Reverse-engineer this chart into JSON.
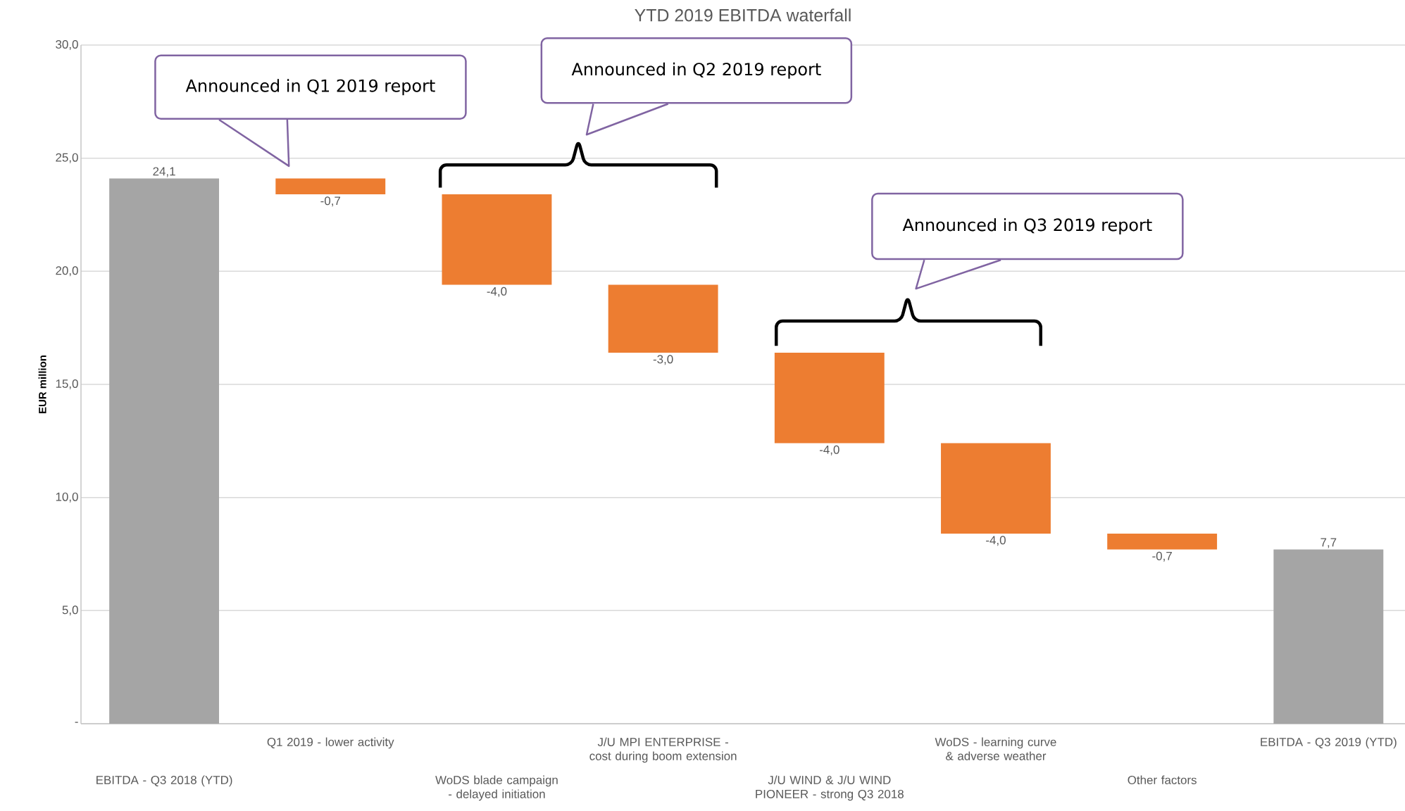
{
  "chart_data": {
    "type": "bar",
    "title": "YTD 2019 EBITDA waterfall",
    "ylabel": "EUR million",
    "categories": [
      "EBITDA - Q3 2018 (YTD)",
      "Q1 2019 - lower activity",
      "WoDS blade campaign - delayed initiation",
      "J/U MPI ENTERPRISE - cost during boom extension",
      "J/U WIND & J/U WIND PIONEER - strong Q3 2018",
      "WoDS - learning curve & adverse weather",
      "Other factors",
      "EBITDA - Q3 2019 (YTD)"
    ],
    "values": [
      24.1,
      -0.7,
      -4.0,
      -3.0,
      -4.0,
      -4.0,
      -0.7,
      7.7
    ],
    "base": [
      0,
      24.1,
      23.4,
      19.4,
      16.4,
      12.4,
      8.4,
      0
    ],
    "colors": [
      "#a5a5a5",
      "#ed7d31",
      "#ed7d31",
      "#ed7d31",
      "#ed7d31",
      "#ed7d31",
      "#ed7d31",
      "#a5a5a5"
    ],
    "value_labels": [
      "24,1",
      "-0,7",
      "-4,0",
      "-3,0",
      "-4,0",
      "-4,0",
      "-0,7",
      "7,7"
    ],
    "ylim": [
      0,
      30
    ],
    "yticks": [
      {
        "value": 0,
        "label": "-"
      },
      {
        "value": 5,
        "label": "5,0"
      },
      {
        "value": 10,
        "label": "10,0"
      },
      {
        "value": 15,
        "label": "15,0"
      },
      {
        "value": 20,
        "label": "20,0"
      },
      {
        "value": 25,
        "label": "25,0"
      },
      {
        "value": 30,
        "label": "30,0"
      }
    ],
    "grid": "y",
    "annotations": [
      "Announced in Q1 2019 report",
      "Announced in Q2 2019 report",
      "Announced in Q3 2019 report"
    ]
  }
}
